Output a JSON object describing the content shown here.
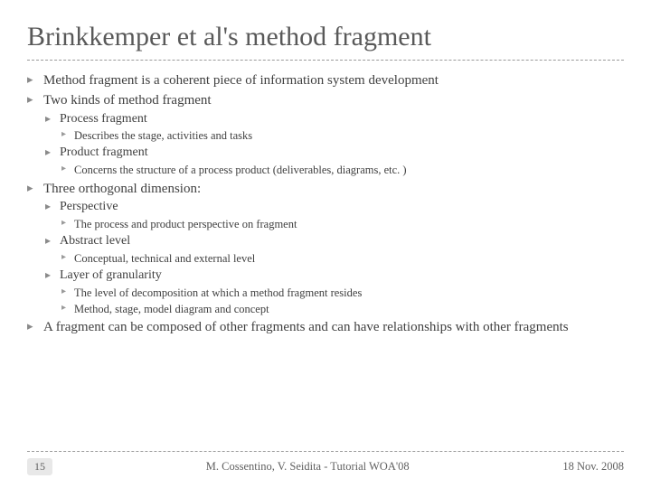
{
  "title": "Brinkkemper et al's method fragment",
  "b1": "Method fragment is a coherent piece of information system development",
  "b2": "Two kinds of method fragment",
  "b2a": "Process fragment",
  "b2a1": "Describes the stage, activities and tasks",
  "b2b": "Product fragment",
  "b2b1": "Concerns the structure of a process product (deliverables, diagrams, etc. )",
  "b3": "Three orthogonal dimension:",
  "b3a": "Perspective",
  "b3a1": "The process and product perspective on fragment",
  "b3b": "Abstract level",
  "b3b1": "Conceptual, technical and external level",
  "b3c": "Layer of granularity",
  "b3c1": "The level of decomposition at which a method fragment resides",
  "b3c2": "Method, stage, model diagram and concept",
  "b4": "A fragment can be composed of other fragments and can have relationships with other fragments",
  "slideNum": "15",
  "footerCenter": "M. Cossentino, V. Seidita - Tutorial WOA'08",
  "footerRight": "18 Nov. 2008"
}
